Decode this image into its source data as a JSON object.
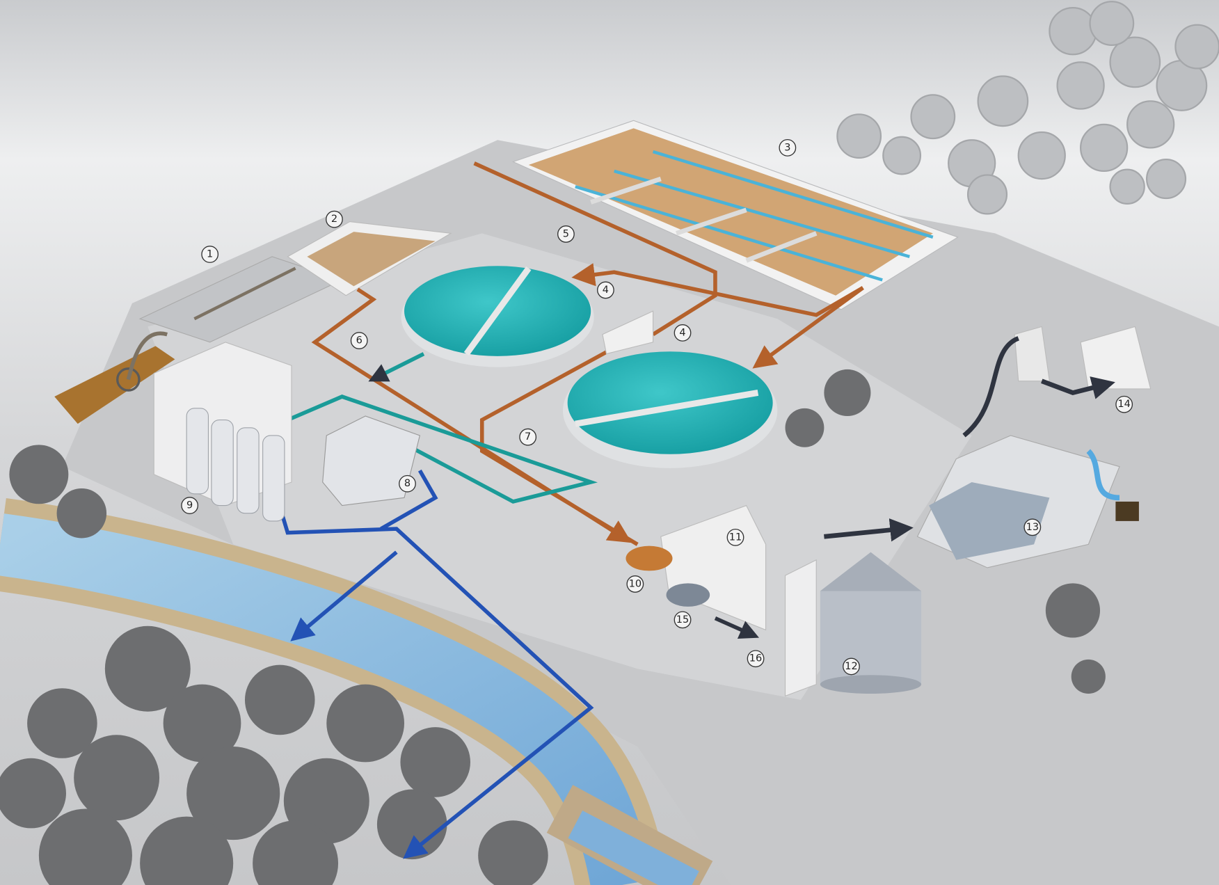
{
  "markers": [
    "1",
    "2",
    "3",
    "4",
    "4",
    "5",
    "6",
    "7",
    "8",
    "9",
    "10",
    "11",
    "12",
    "13",
    "14",
    "15",
    "16"
  ]
}
